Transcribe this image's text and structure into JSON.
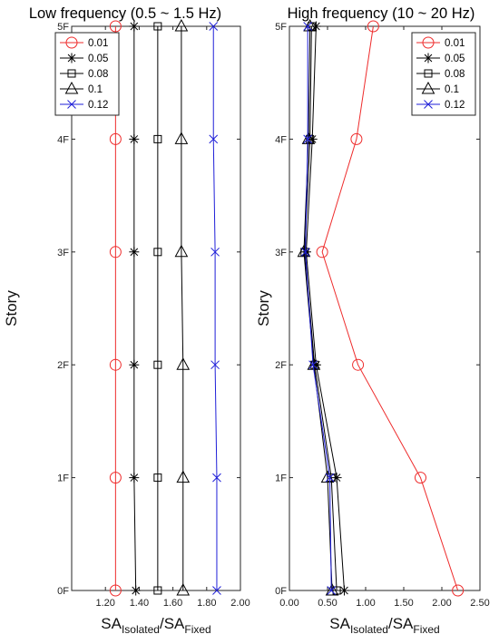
{
  "chart_data": [
    {
      "type": "line",
      "title": "Low frequency (0.5 ~ 1.5 Hz)",
      "xlabel": {
        "main": "SA",
        "sub1": "Isolated",
        "sep": "/SA",
        "sub2": "Fixed"
      },
      "ylabel": "Story",
      "xlim": [
        1.0,
        2.0
      ],
      "xticks": [
        "1.20",
        "1.40",
        "1.60",
        "1.80",
        "2.00"
      ],
      "xtick_values": [
        1.2,
        1.4,
        1.6,
        1.8,
        2.0
      ],
      "y_categories": [
        "0F",
        "1F",
        "2F",
        "3F",
        "4F",
        "5F"
      ],
      "legend_position": "top-left",
      "series": [
        {
          "name": "0.01",
          "marker": "circle",
          "color": "#ee2b2b",
          "x": [
            1.26,
            1.26,
            1.26,
            1.26,
            1.26,
            1.26
          ]
        },
        {
          "name": "0.05",
          "marker": "asterisk",
          "color": "#000000",
          "x": [
            1.38,
            1.37,
            1.37,
            1.37,
            1.37,
            1.37
          ]
        },
        {
          "name": "0.08",
          "marker": "square",
          "color": "#000000",
          "x": [
            1.51,
            1.51,
            1.51,
            1.51,
            1.51,
            1.51
          ]
        },
        {
          "name": "0.1",
          "marker": "triangle",
          "color": "#000000",
          "x": [
            1.66,
            1.66,
            1.66,
            1.65,
            1.65,
            1.65
          ]
        },
        {
          "name": "0.12",
          "marker": "x",
          "color": "#1f1fd8",
          "x": [
            1.86,
            1.86,
            1.85,
            1.85,
            1.84,
            1.84
          ]
        }
      ]
    },
    {
      "type": "line",
      "title": "High frequency (10 ~ 20 Hz)",
      "xlabel": {
        "main": "SA",
        "sub1": "Isolated",
        "sep": "/SA",
        "sub2": "Fixed"
      },
      "ylabel": "Story",
      "xlim": [
        0.0,
        2.5
      ],
      "xticks": [
        "0.00",
        "0.50",
        "1.00",
        "1.50",
        "2.00",
        "2.50"
      ],
      "xtick_values": [
        0.0,
        0.5,
        1.0,
        1.5,
        2.0,
        2.5
      ],
      "y_categories": [
        "0F",
        "1F",
        "2F",
        "3F",
        "4F",
        "5F"
      ],
      "legend_position": "top-right",
      "series": [
        {
          "name": "0.01",
          "marker": "circle",
          "color": "#ee2b2b",
          "x": [
            2.21,
            1.72,
            0.9,
            0.43,
            0.88,
            1.1
          ]
        },
        {
          "name": "0.05",
          "marker": "asterisk",
          "color": "#000000",
          "x": [
            0.72,
            0.62,
            0.35,
            0.22,
            0.3,
            0.35
          ]
        },
        {
          "name": "0.08",
          "marker": "square",
          "color": "#000000",
          "x": [
            0.62,
            0.55,
            0.33,
            0.2,
            0.27,
            0.29
          ]
        },
        {
          "name": "0.1",
          "marker": "triangle",
          "color": "#000000",
          "x": [
            0.56,
            0.5,
            0.32,
            0.19,
            0.25,
            0.27
          ]
        },
        {
          "name": "0.12",
          "marker": "x",
          "color": "#1f1fd8",
          "x": [
            0.55,
            0.53,
            0.31,
            0.21,
            0.24,
            0.24
          ]
        }
      ]
    }
  ]
}
